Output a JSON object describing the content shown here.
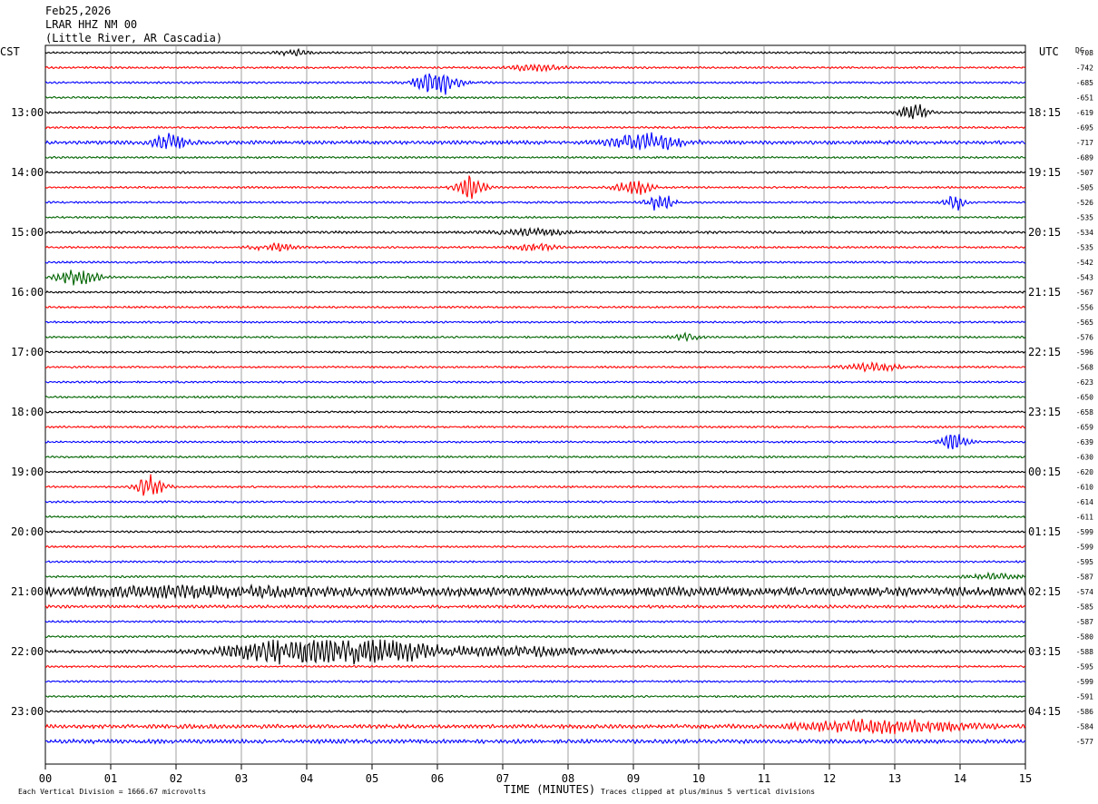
{
  "header": {
    "date": "Feb25,2026",
    "station": "LRAR HHZ NM 00",
    "location": "(Little River, AR Cascadia)",
    "left_zone": "CST",
    "right_zone": "UTC",
    "dc_label": "DC"
  },
  "footer": {
    "scale_note": "Each Vertical Division = 1666.67 microvolts",
    "xlabel": "TIME (MINUTES)",
    "clip_note": "Traces clipped at plus/minus 5 vertical divisions"
  },
  "chart_data": {
    "type": "line",
    "title": "LRAR HHZ NM 00",
    "xlabel": "TIME (MINUTES)",
    "ylabel": "",
    "xlim": [
      0,
      15
    ],
    "x_ticks": [
      "00",
      "01",
      "02",
      "03",
      "04",
      "05",
      "06",
      "07",
      "08",
      "09",
      "10",
      "11",
      "12",
      "13",
      "14",
      "15"
    ],
    "grid": true,
    "trace_colors": [
      "#000000",
      "#ff0000",
      "#0000ff",
      "#006400"
    ],
    "left_hour_labels": [
      {
        "row": 4,
        "label": "13:00"
      },
      {
        "row": 8,
        "label": "14:00"
      },
      {
        "row": 12,
        "label": "15:00"
      },
      {
        "row": 16,
        "label": "16:00"
      },
      {
        "row": 20,
        "label": "17:00"
      },
      {
        "row": 24,
        "label": "18:00"
      },
      {
        "row": 28,
        "label": "19:00"
      },
      {
        "row": 32,
        "label": "20:00"
      },
      {
        "row": 36,
        "label": "21:00"
      },
      {
        "row": 40,
        "label": "22:00"
      },
      {
        "row": 44,
        "label": "23:00"
      }
    ],
    "right_hour_labels": [
      {
        "row": 4,
        "label": "18:15"
      },
      {
        "row": 8,
        "label": "19:15"
      },
      {
        "row": 12,
        "label": "20:15"
      },
      {
        "row": 16,
        "label": "21:15"
      },
      {
        "row": 20,
        "label": "22:15"
      },
      {
        "row": 24,
        "label": "23:15"
      },
      {
        "row": 28,
        "label": "00:15"
      },
      {
        "row": 32,
        "label": "01:15"
      },
      {
        "row": 36,
        "label": "02:15"
      },
      {
        "row": 40,
        "label": "03:15"
      },
      {
        "row": 44,
        "label": "04:15"
      }
    ],
    "dc_offsets": [
      -708,
      -742,
      -685,
      -651,
      -619,
      -695,
      -717,
      -689,
      -507,
      -505,
      -526,
      -535,
      -534,
      -535,
      -542,
      -543,
      -567,
      -556,
      -565,
      -576,
      -596,
      -568,
      -623,
      -650,
      -658,
      -659,
      -639,
      -630,
      -620,
      -610,
      -614,
      -611,
      -599,
      -599,
      -595,
      -587,
      -574,
      -585,
      -587,
      -580,
      -588,
      -595,
      -599,
      -591,
      -586,
      -584,
      -577
    ],
    "traces": [
      {
        "base": 1.0,
        "events": [
          {
            "row": 0,
            "minute": 3.8,
            "amp": 3.5,
            "width": 0.2
          }
        ]
      },
      {
        "base": 1.0,
        "events": [
          {
            "row": 1,
            "minute": 7.5,
            "amp": 3,
            "width": 0.4
          }
        ]
      },
      {
        "base": 1.0,
        "events": [
          {
            "row": 2,
            "minute": 6.0,
            "amp": 14,
            "width": 0.3
          }
        ]
      },
      {
        "base": 1.0,
        "events": []
      },
      {
        "base": 1.0,
        "events": [
          {
            "row": 4,
            "minute": 13.3,
            "amp": 10,
            "width": 0.2
          }
        ]
      },
      {
        "base": 1.0,
        "events": []
      },
      {
        "base": 1.8,
        "events": [
          {
            "row": 6,
            "minute": 1.9,
            "amp": 8,
            "width": 0.25
          },
          {
            "row": 6,
            "minute": 9.2,
            "amp": 9,
            "width": 0.5
          }
        ]
      },
      {
        "base": 1.0,
        "events": []
      },
      {
        "base": 1.0,
        "events": []
      },
      {
        "base": 1.0,
        "events": [
          {
            "row": 9,
            "minute": 6.5,
            "amp": 12,
            "width": 0.2
          },
          {
            "row": 9,
            "minute": 9.0,
            "amp": 8,
            "width": 0.25
          }
        ]
      },
      {
        "base": 1.0,
        "events": [
          {
            "row": 10,
            "minute": 9.4,
            "amp": 9,
            "width": 0.2
          },
          {
            "row": 10,
            "minute": 13.9,
            "amp": 9,
            "width": 0.15
          }
        ]
      },
      {
        "base": 1.0,
        "events": []
      },
      {
        "base": 1.3,
        "events": [
          {
            "row": 12,
            "minute": 7.5,
            "amp": 3,
            "width": 0.5
          }
        ]
      },
      {
        "base": 1.0,
        "events": [
          {
            "row": 13,
            "minute": 3.5,
            "amp": 4,
            "width": 0.3
          },
          {
            "row": 13,
            "minute": 7.5,
            "amp": 4,
            "width": 0.3
          }
        ]
      },
      {
        "base": 1.0,
        "events": []
      },
      {
        "base": 1.0,
        "events": [
          {
            "row": 15,
            "minute": 0.5,
            "amp": 8,
            "width": 0.3
          }
        ]
      },
      {
        "base": 1.0,
        "events": []
      },
      {
        "base": 1.0,
        "events": []
      },
      {
        "base": 1.0,
        "events": []
      },
      {
        "base": 1.0,
        "events": [
          {
            "row": 19,
            "minute": 9.8,
            "amp": 4,
            "width": 0.2
          }
        ]
      },
      {
        "base": 1.0,
        "events": []
      },
      {
        "base": 1.0,
        "events": [
          {
            "row": 21,
            "minute": 12.7,
            "amp": 4,
            "width": 0.4
          }
        ]
      },
      {
        "base": 1.0,
        "events": []
      },
      {
        "base": 1.0,
        "events": []
      },
      {
        "base": 1.0,
        "events": []
      },
      {
        "base": 1.0,
        "events": []
      },
      {
        "base": 1.0,
        "events": [
          {
            "row": 26,
            "minute": 13.9,
            "amp": 8,
            "width": 0.2
          }
        ]
      },
      {
        "base": 1.0,
        "events": []
      },
      {
        "base": 1.0,
        "events": []
      },
      {
        "base": 1.0,
        "events": [
          {
            "row": 29,
            "minute": 1.6,
            "amp": 12,
            "width": 0.2
          }
        ]
      },
      {
        "base": 1.0,
        "events": []
      },
      {
        "base": 1.0,
        "events": []
      },
      {
        "base": 1.0,
        "events": []
      },
      {
        "base": 1.0,
        "events": []
      },
      {
        "base": 1.0,
        "events": []
      },
      {
        "base": 1.0,
        "events": [
          {
            "row": 35,
            "minute": 14.5,
            "amp": 3,
            "width": 0.4
          }
        ]
      },
      {
        "base": 4.5,
        "events": [
          {
            "row": 36,
            "minute": 2.5,
            "amp": 3,
            "width": 1.5
          }
        ]
      },
      {
        "base": 1.5,
        "events": []
      },
      {
        "base": 1.0,
        "events": []
      },
      {
        "base": 1.0,
        "events": []
      },
      {
        "base": 1.5,
        "events": [
          {
            "row": 40,
            "minute": 5.0,
            "amp": 11,
            "width": 1.2
          },
          {
            "row": 40,
            "minute": 3.5,
            "amp": 9,
            "width": 0.8
          },
          {
            "row": 40,
            "minute": 7.5,
            "amp": 4,
            "width": 1.0
          }
        ]
      },
      {
        "base": 1.0,
        "events": []
      },
      {
        "base": 1.0,
        "events": []
      },
      {
        "base": 1.0,
        "events": []
      },
      {
        "base": 1.0,
        "events": []
      },
      {
        "base": 2.0,
        "events": [
          {
            "row": 45,
            "minute": 12.8,
            "amp": 6,
            "width": 1.2
          }
        ]
      },
      {
        "base": 2.0,
        "events": []
      }
    ]
  }
}
